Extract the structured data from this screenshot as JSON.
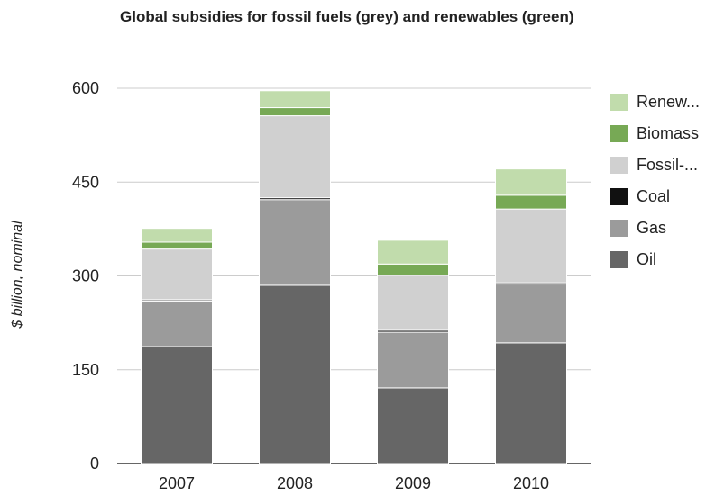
{
  "chart_data": {
    "type": "bar",
    "stacked": true,
    "title": "Global subsidies for fossil fuels (grey) and renewables (green)",
    "xlabel": "",
    "ylabel": "$ billion, nominal",
    "categories": [
      "2007",
      "2008",
      "2009",
      "2010"
    ],
    "ylim": [
      0,
      600
    ],
    "yticks": [
      0,
      150,
      300,
      450,
      600
    ],
    "grid": true,
    "legend_position": "right",
    "series": [
      {
        "name": "Oil",
        "color": "#666666",
        "values": [
          187,
          285,
          121,
          193
        ]
      },
      {
        "name": "Gas",
        "color": "#9b9b9b",
        "values": [
          73,
          137,
          89,
          94
        ]
      },
      {
        "name": "Coal",
        "color": "#111111",
        "values": [
          2,
          3,
          3,
          2
        ]
      },
      {
        "name": "Fossil-...",
        "color": "#d0d0d0",
        "values": [
          81,
          131,
          88,
          118
        ]
      },
      {
        "name": "Biomass",
        "color": "#77a955",
        "values": [
          11,
          13,
          18,
          22
        ]
      },
      {
        "name": "Renew...",
        "color": "#c1dcac",
        "values": [
          22,
          27,
          38,
          42
        ]
      }
    ],
    "legend_order": [
      "Renew...",
      "Biomass",
      "Fossil-...",
      "Coal",
      "Gas",
      "Oil"
    ]
  }
}
